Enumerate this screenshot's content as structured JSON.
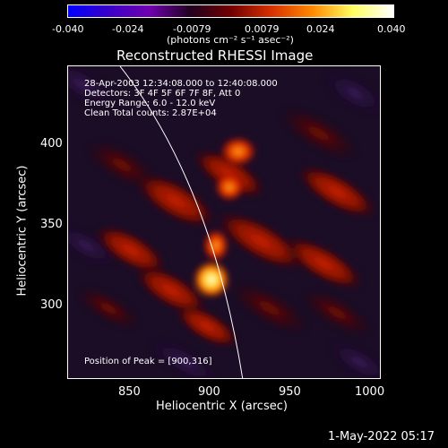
{
  "colorbar": {
    "ticks": [
      "-0.040",
      "-0.024",
      "-0.0079",
      "0.0079",
      "0.024",
      "0.040"
    ],
    "units_label": "(photons cm⁻² s⁻¹ asec⁻²)",
    "colors": [
      "#0000ff",
      "#3a00c8",
      "#7000b0",
      "#200020",
      "#700000",
      "#d83000",
      "#ff8800",
      "#ffff60",
      "#ffffff"
    ]
  },
  "plot": {
    "title": "Reconstructed RHESSI Image",
    "info_lines": [
      "28-Apr-2003 12:34:08.000 to 12:40:08.000",
      "Detectors: 3F 4F 5F 6F 7F 8F, Att 0",
      "Energy Range: 6.0 - 12.0 keV",
      "Clean     Total counts: 2.87E+04"
    ],
    "peak_label": "Position of Peak = [900,316]",
    "x_axis_label": "Heliocentric X (arcsec)",
    "y_axis_label": "Heliocentric Y (arcsec)",
    "x_ticks": [
      "850",
      "900",
      "950",
      "1000"
    ],
    "y_ticks": [
      "400",
      "350",
      "300"
    ]
  },
  "footer": {
    "timestamp": "1-May-2022 05:17"
  }
}
